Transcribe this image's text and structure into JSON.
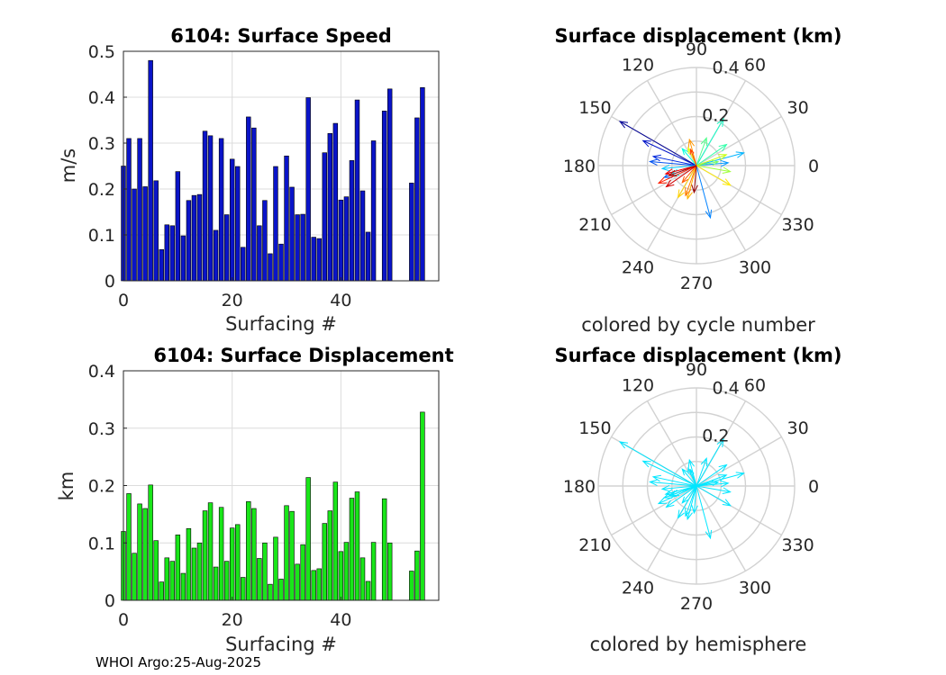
{
  "footer": "WHOI Argo:25-Aug-2025",
  "chart_data": [
    {
      "type": "bar",
      "title": "6104: Surface Speed",
      "xlabel": "Surfacing #",
      "ylabel": "m/s",
      "xlim": [
        0,
        58
      ],
      "ylim": [
        0,
        0.5
      ],
      "xticks": [
        "0",
        "20",
        "40"
      ],
      "yticks": [
        "0",
        "0.1",
        "0.2",
        "0.3",
        "0.4",
        "0.5"
      ],
      "grid": true,
      "color": "#0a14c8",
      "x": [
        0,
        1,
        2,
        3,
        4,
        5,
        6,
        7,
        8,
        9,
        10,
        11,
        12,
        13,
        14,
        15,
        16,
        17,
        18,
        19,
        20,
        21,
        22,
        23,
        24,
        25,
        26,
        27,
        28,
        29,
        30,
        31,
        32,
        33,
        34,
        35,
        36,
        37,
        38,
        39,
        40,
        41,
        42,
        43,
        44,
        45,
        46,
        48,
        49,
        53,
        54,
        55
      ],
      "values": [
        0.25,
        0.31,
        0.2,
        0.31,
        0.205,
        0.48,
        0.218,
        0.068,
        0.122,
        0.12,
        0.238,
        0.098,
        0.175,
        0.186,
        0.188,
        0.326,
        0.316,
        0.11,
        0.31,
        0.144,
        0.265,
        0.249,
        0.073,
        0.357,
        0.333,
        0.12,
        0.175,
        0.059,
        0.249,
        0.08,
        0.272,
        0.204,
        0.144,
        0.145,
        0.399,
        0.095,
        0.092,
        0.279,
        0.321,
        0.343,
        0.176,
        0.183,
        0.262,
        0.394,
        0.196,
        0.106,
        0.305,
        0.37,
        0.418,
        0.213,
        0.355,
        0.421
      ]
    },
    {
      "type": "bar",
      "title": "6104: Surface Displacement",
      "xlabel": "Surfacing #",
      "ylabel": "km",
      "xlim": [
        0,
        58
      ],
      "ylim": [
        0,
        0.4
      ],
      "xticks": [
        "0",
        "20",
        "40"
      ],
      "yticks": [
        "0",
        "0.1",
        "0.2",
        "0.3",
        "0.4"
      ],
      "grid": true,
      "color": "#19e619",
      "x": [
        0,
        1,
        2,
        3,
        4,
        5,
        6,
        7,
        8,
        9,
        10,
        11,
        12,
        13,
        14,
        15,
        16,
        17,
        18,
        19,
        20,
        21,
        22,
        23,
        24,
        25,
        26,
        27,
        28,
        29,
        30,
        31,
        32,
        33,
        34,
        35,
        36,
        37,
        38,
        39,
        40,
        41,
        42,
        43,
        44,
        45,
        46,
        48,
        49,
        53,
        54,
        55
      ],
      "values": [
        0.12,
        0.186,
        0.082,
        0.168,
        0.16,
        0.201,
        0.104,
        0.032,
        0.074,
        0.068,
        0.114,
        0.047,
        0.125,
        0.091,
        0.1,
        0.156,
        0.17,
        0.058,
        0.162,
        0.068,
        0.126,
        0.132,
        0.04,
        0.172,
        0.16,
        0.073,
        0.1,
        0.028,
        0.11,
        0.037,
        0.165,
        0.155,
        0.063,
        0.097,
        0.214,
        0.052,
        0.055,
        0.134,
        0.156,
        0.206,
        0.085,
        0.101,
        0.178,
        0.189,
        0.074,
        0.033,
        0.101,
        0.177,
        0.1,
        0.051,
        0.086,
        0.328
      ]
    },
    {
      "type": "polar",
      "title": "Surface displacement (km)",
      "xlabel": "colored by cycle number",
      "rmax": 0.4,
      "rticks": [
        "0.2",
        "0.4"
      ],
      "angle_ticks": [
        "0",
        "30",
        "60",
        "90",
        "120",
        "150",
        "180",
        "210",
        "240",
        "270",
        "300",
        "330"
      ],
      "vectors": [
        {
          "theta": 150,
          "r": 0.36,
          "color": "#000096"
        },
        {
          "theta": 155,
          "r": 0.24,
          "color": "#0014c8"
        },
        {
          "theta": 168,
          "r": 0.18,
          "color": "#0028dc"
        },
        {
          "theta": 175,
          "r": 0.19,
          "color": "#0050f0"
        },
        {
          "theta": 200,
          "r": 0.14,
          "color": "#0064ff"
        },
        {
          "theta": 285,
          "r": 0.22,
          "color": "#0082ff"
        },
        {
          "theta": 5,
          "r": 0.13,
          "color": "#0096ff"
        },
        {
          "theta": 15,
          "r": 0.2,
          "color": "#00b4ff"
        },
        {
          "theta": 185,
          "r": 0.14,
          "color": "#00c8ff"
        },
        {
          "theta": 200,
          "r": 0.11,
          "color": "#00e6f0"
        },
        {
          "theta": 130,
          "r": 0.09,
          "color": "#00ffdc"
        },
        {
          "theta": 60,
          "r": 0.22,
          "color": "#14ffc8"
        },
        {
          "theta": 35,
          "r": 0.15,
          "color": "#32ffaa"
        },
        {
          "theta": 70,
          "r": 0.12,
          "color": "#50ff8c"
        },
        {
          "theta": 10,
          "r": 0.09,
          "color": "#78ff64"
        },
        {
          "theta": 350,
          "r": 0.14,
          "color": "#a0ff3c"
        },
        {
          "theta": 20,
          "r": 0.13,
          "color": "#c8ff14"
        },
        {
          "theta": 115,
          "r": 0.08,
          "color": "#e6ff00"
        },
        {
          "theta": 330,
          "r": 0.16,
          "color": "#ffeb00"
        },
        {
          "theta": 240,
          "r": 0.15,
          "color": "#ffd200"
        },
        {
          "theta": 255,
          "r": 0.14,
          "color": "#ffb400"
        },
        {
          "theta": 105,
          "r": 0.11,
          "color": "#ff9600"
        },
        {
          "theta": 250,
          "r": 0.13,
          "color": "#ff7800"
        },
        {
          "theta": 230,
          "r": 0.09,
          "color": "#ff5a00"
        },
        {
          "theta": 110,
          "r": 0.07,
          "color": "#ff3c00"
        },
        {
          "theta": 205,
          "r": 0.17,
          "color": "#ff1e00"
        },
        {
          "theta": 195,
          "r": 0.13,
          "color": "#f00000"
        },
        {
          "theta": 215,
          "r": 0.15,
          "color": "#d20000"
        },
        {
          "theta": 200,
          "r": 0.12,
          "color": "#b40000"
        },
        {
          "theta": 265,
          "r": 0.11,
          "color": "#960000"
        }
      ]
    },
    {
      "type": "polar",
      "title": "Surface displacement (km)",
      "xlabel": "colored by hemisphere",
      "rmax": 0.4,
      "rticks": [
        "0.2",
        "0.4"
      ],
      "angle_ticks": [
        "0",
        "30",
        "60",
        "90",
        "120",
        "150",
        "180",
        "210",
        "240",
        "270",
        "300",
        "330"
      ],
      "color": "#00e6ff",
      "vectors": [
        {
          "theta": 150,
          "r": 0.36
        },
        {
          "theta": 155,
          "r": 0.24
        },
        {
          "theta": 168,
          "r": 0.18
        },
        {
          "theta": 175,
          "r": 0.19
        },
        {
          "theta": 200,
          "r": 0.14
        },
        {
          "theta": 285,
          "r": 0.22
        },
        {
          "theta": 5,
          "r": 0.13
        },
        {
          "theta": 15,
          "r": 0.2
        },
        {
          "theta": 185,
          "r": 0.14
        },
        {
          "theta": 200,
          "r": 0.11
        },
        {
          "theta": 130,
          "r": 0.09
        },
        {
          "theta": 60,
          "r": 0.22
        },
        {
          "theta": 35,
          "r": 0.15
        },
        {
          "theta": 70,
          "r": 0.12
        },
        {
          "theta": 10,
          "r": 0.09
        },
        {
          "theta": 350,
          "r": 0.14
        },
        {
          "theta": 20,
          "r": 0.13
        },
        {
          "theta": 115,
          "r": 0.08
        },
        {
          "theta": 330,
          "r": 0.16
        },
        {
          "theta": 240,
          "r": 0.15
        },
        {
          "theta": 255,
          "r": 0.14
        },
        {
          "theta": 105,
          "r": 0.11
        },
        {
          "theta": 250,
          "r": 0.13
        },
        {
          "theta": 230,
          "r": 0.09
        },
        {
          "theta": 110,
          "r": 0.07
        },
        {
          "theta": 205,
          "r": 0.17
        },
        {
          "theta": 195,
          "r": 0.13
        },
        {
          "theta": 215,
          "r": 0.15
        },
        {
          "theta": 200,
          "r": 0.12
        },
        {
          "theta": 265,
          "r": 0.11
        }
      ]
    }
  ]
}
